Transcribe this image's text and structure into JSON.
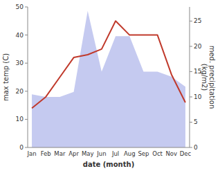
{
  "chart_data": {
    "type": "line",
    "xlabel": "date (month)",
    "ylabel": "max temp (C)",
    "y2label": "med. precipitation\n(kg/m2)",
    "categories": [
      "Jan",
      "Feb",
      "Mar",
      "Apr",
      "May",
      "Jun",
      "Jul",
      "Aug",
      "Sep",
      "Oct",
      "Nov",
      "Dec"
    ],
    "series": [
      {
        "type": "area",
        "axis": "y2",
        "color": "#c5caf0",
        "values": [
          10.5,
          10,
          10,
          11,
          27,
          15,
          22,
          22,
          15,
          15,
          14,
          12
        ]
      },
      {
        "type": "line",
        "color": "#c0392b",
        "values": [
          14,
          18,
          25,
          32,
          33,
          35,
          45,
          40,
          40,
          40,
          26,
          16
        ]
      }
    ],
    "ylim": [
      0,
      50
    ],
    "yticks": [
      0,
      10,
      20,
      30,
      40,
      50
    ],
    "y2lim": [
      0,
      27.8
    ],
    "y2ticks": [
      0,
      5,
      10,
      15,
      20,
      25
    ],
    "grid": false
  }
}
